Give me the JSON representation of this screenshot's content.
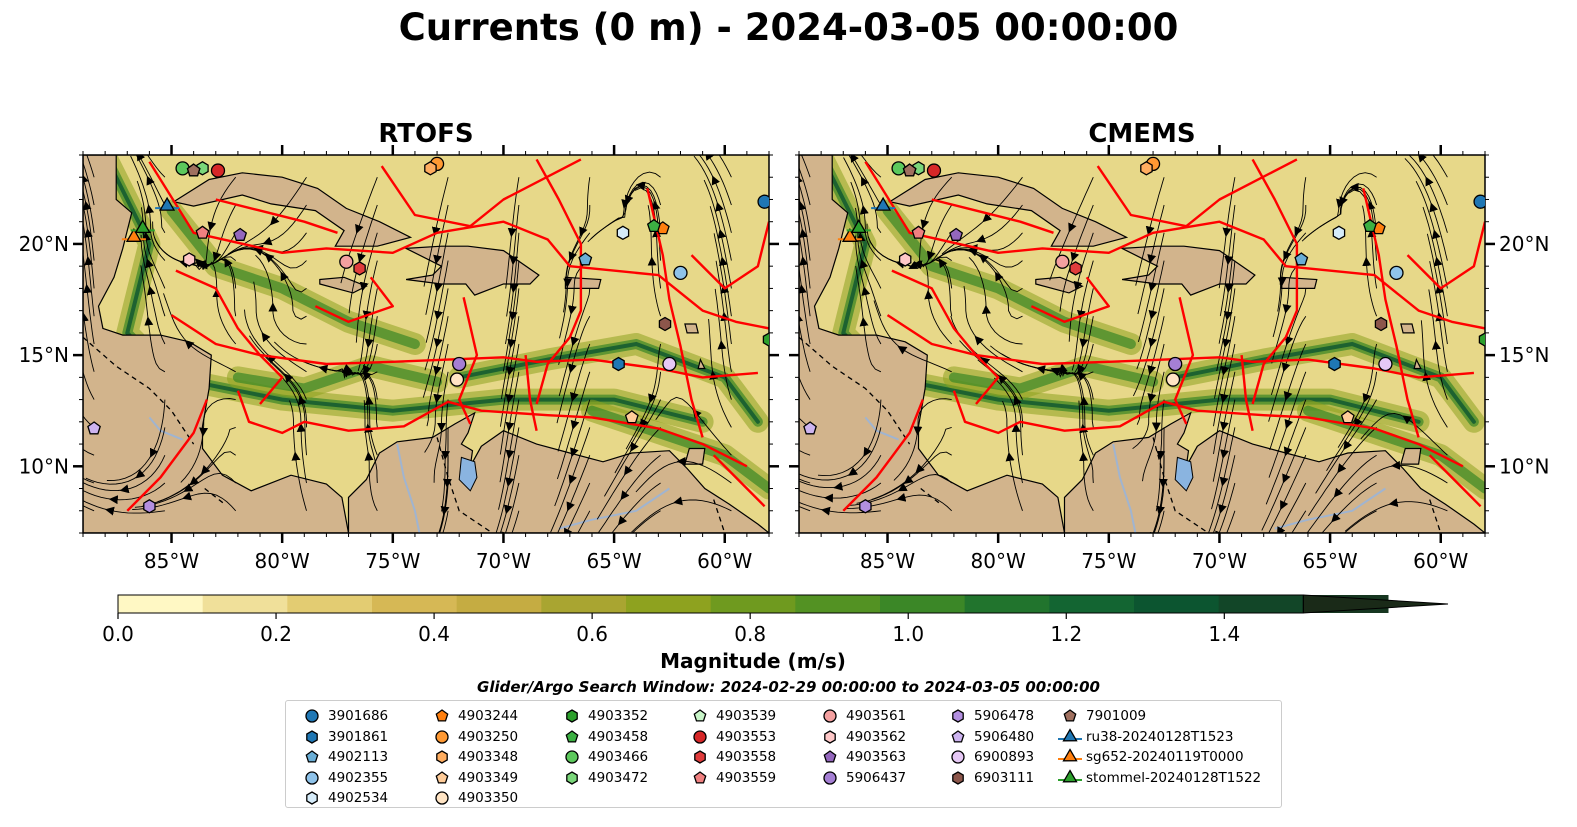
{
  "title": "Currents (0 m) - 2024-03-05 00:00:00",
  "panels": [
    {
      "title": "RTOFS"
    },
    {
      "title": "CMEMS"
    }
  ],
  "colors": {
    "land": "#d2b48c",
    "lake": "#8ab4e0",
    "river": "#a0b4d0",
    "boundary": "#ff0000",
    "streamline": "#000000",
    "ocean_base": "#e7d889"
  },
  "chart_data": {
    "type": "map",
    "lon_range": [
      -89,
      -58
    ],
    "lat_range": [
      7,
      24
    ],
    "x_ticks": [
      {
        "value": -85,
        "label": "85°W"
      },
      {
        "value": -80,
        "label": "80°W"
      },
      {
        "value": -75,
        "label": "75°W"
      },
      {
        "value": -70,
        "label": "70°W"
      },
      {
        "value": -65,
        "label": "65°W"
      },
      {
        "value": -60,
        "label": "60°W"
      }
    ],
    "y_ticks": [
      {
        "value": 20,
        "label": "20°N"
      },
      {
        "value": 15,
        "label": "15°N"
      },
      {
        "value": 10,
        "label": "10°N"
      }
    ],
    "colorbar": {
      "label": "Magnitude (m/s)",
      "range": [
        0,
        1.5
      ],
      "extend": "max",
      "ticks": [
        {
          "value": 0.0,
          "label": "0.0"
        },
        {
          "value": 0.2,
          "label": "0.2"
        },
        {
          "value": 0.4,
          "label": "0.4"
        },
        {
          "value": 0.6,
          "label": "0.6"
        },
        {
          "value": 0.8,
          "label": "0.8"
        },
        {
          "value": 1.0,
          "label": "1.0"
        },
        {
          "value": 1.2,
          "label": "1.2"
        },
        {
          "value": 1.4,
          "label": "1.4"
        }
      ],
      "colors": [
        "#fff8c4",
        "#f0e09a",
        "#e3cc72",
        "#d6b855",
        "#c5ac42",
        "#a9a531",
        "#8ea21f",
        "#6f9a1f",
        "#539223",
        "#3b8727",
        "#21742d",
        "#136532",
        "#0c5530",
        "#124628",
        "#163620",
        "#1a2a18"
      ]
    },
    "search_window": "Glider/Argo Search Window: 2024-02-29 00:00:00 to 2024-03-05 00:00:00",
    "legend_placement": "bottom",
    "series": [
      {
        "name": "3901686",
        "marker": "circle",
        "color": "#1f77b4",
        "lon": -58.2,
        "lat": 21.9
      },
      {
        "name": "3901861",
        "marker": "hexagon",
        "color": "#1f77b4",
        "lon": -64.8,
        "lat": 14.6
      },
      {
        "name": "4902113",
        "marker": "pentagon",
        "color": "#6aaed6",
        "lon": -66.3,
        "lat": 19.3
      },
      {
        "name": "4902355",
        "marker": "circle",
        "color": "#8fc3ea",
        "lon": -62.0,
        "lat": 18.7
      },
      {
        "name": "4902534",
        "marker": "hexagon",
        "color": "#d6ecfa",
        "lon": -64.6,
        "lat": 20.5
      },
      {
        "name": "4903244",
        "marker": "pentagon",
        "color": "#ff7f0e",
        "lon": -62.8,
        "lat": 20.7
      },
      {
        "name": "4903250",
        "marker": "circle",
        "color": "#ff9933",
        "lon": -73.0,
        "lat": 23.6
      },
      {
        "name": "4903348",
        "marker": "hexagon",
        "color": "#ffad60",
        "lon": -73.3,
        "lat": 23.4
      },
      {
        "name": "4903349",
        "marker": "pentagon",
        "color": "#ffcc99",
        "lon": -64.2,
        "lat": 12.2
      },
      {
        "name": "4903350",
        "marker": "circle",
        "color": "#ffe4c4",
        "lon": -72.1,
        "lat": 13.9
      },
      {
        "name": "4903352",
        "marker": "hexagon",
        "color": "#2ca02c",
        "lon": -58.0,
        "lat": 15.7
      },
      {
        "name": "4903458",
        "marker": "pentagon",
        "color": "#3cb043",
        "lon": -63.2,
        "lat": 20.8
      },
      {
        "name": "4903466",
        "marker": "circle",
        "color": "#5cc85c",
        "lon": -84.5,
        "lat": 23.4
      },
      {
        "name": "4903472",
        "marker": "hexagon",
        "color": "#7ad67a",
        "lon": -83.6,
        "lat": 23.4
      },
      {
        "name": "4903539",
        "marker": "pentagon",
        "color": "#c8f5c8",
        "lon": -84.0,
        "lat": 23.3
      },
      {
        "name": "4903553",
        "marker": "circle",
        "color": "#d62728",
        "lon": -82.9,
        "lat": 23.3
      },
      {
        "name": "4903558",
        "marker": "hexagon",
        "color": "#e03c3c",
        "lon": -76.5,
        "lat": 18.9
      },
      {
        "name": "4903559",
        "marker": "pentagon",
        "color": "#f08080",
        "lon": -83.6,
        "lat": 20.5
      },
      {
        "name": "4903561",
        "marker": "circle",
        "color": "#f4a0a0",
        "lon": -77.1,
        "lat": 19.2
      },
      {
        "name": "4903562",
        "marker": "hexagon",
        "color": "#ffc8c8",
        "lon": -84.2,
        "lat": 19.3
      },
      {
        "name": "4903563",
        "marker": "pentagon",
        "color": "#9467bd",
        "lon": -81.9,
        "lat": 20.4
      },
      {
        "name": "5906437",
        "marker": "circle",
        "color": "#a57fd4",
        "lon": -72.0,
        "lat": 14.6
      },
      {
        "name": "5906478",
        "marker": "hexagon",
        "color": "#b38fe0",
        "lon": -86.0,
        "lat": 8.2
      },
      {
        "name": "5906480",
        "marker": "pentagon",
        "color": "#cdb4f0",
        "lon": -88.5,
        "lat": 11.7
      },
      {
        "name": "6900893",
        "marker": "circle",
        "color": "#e6c8f5",
        "lon": -62.5,
        "lat": 14.6
      },
      {
        "name": "6903111",
        "marker": "hexagon",
        "color": "#8c564b",
        "lon": -62.7,
        "lat": 16.4
      },
      {
        "name": "7901009",
        "marker": "pentagon",
        "color": "#a0705f",
        "lon": -84.0,
        "lat": 23.3
      },
      {
        "name": "ru38-20240128T1523",
        "marker": "triangle-line",
        "color": "#1f77b4",
        "lon": -85.2,
        "lat": 21.7
      },
      {
        "name": "sg652-20240119T0000",
        "marker": "triangle-line",
        "color": "#ff7f0e",
        "lon": -86.7,
        "lat": 20.3
      },
      {
        "name": "stommel-20240128T1522",
        "marker": "triangle-line",
        "color": "#2ca02c",
        "lon": -86.3,
        "lat": 20.7
      }
    ]
  }
}
